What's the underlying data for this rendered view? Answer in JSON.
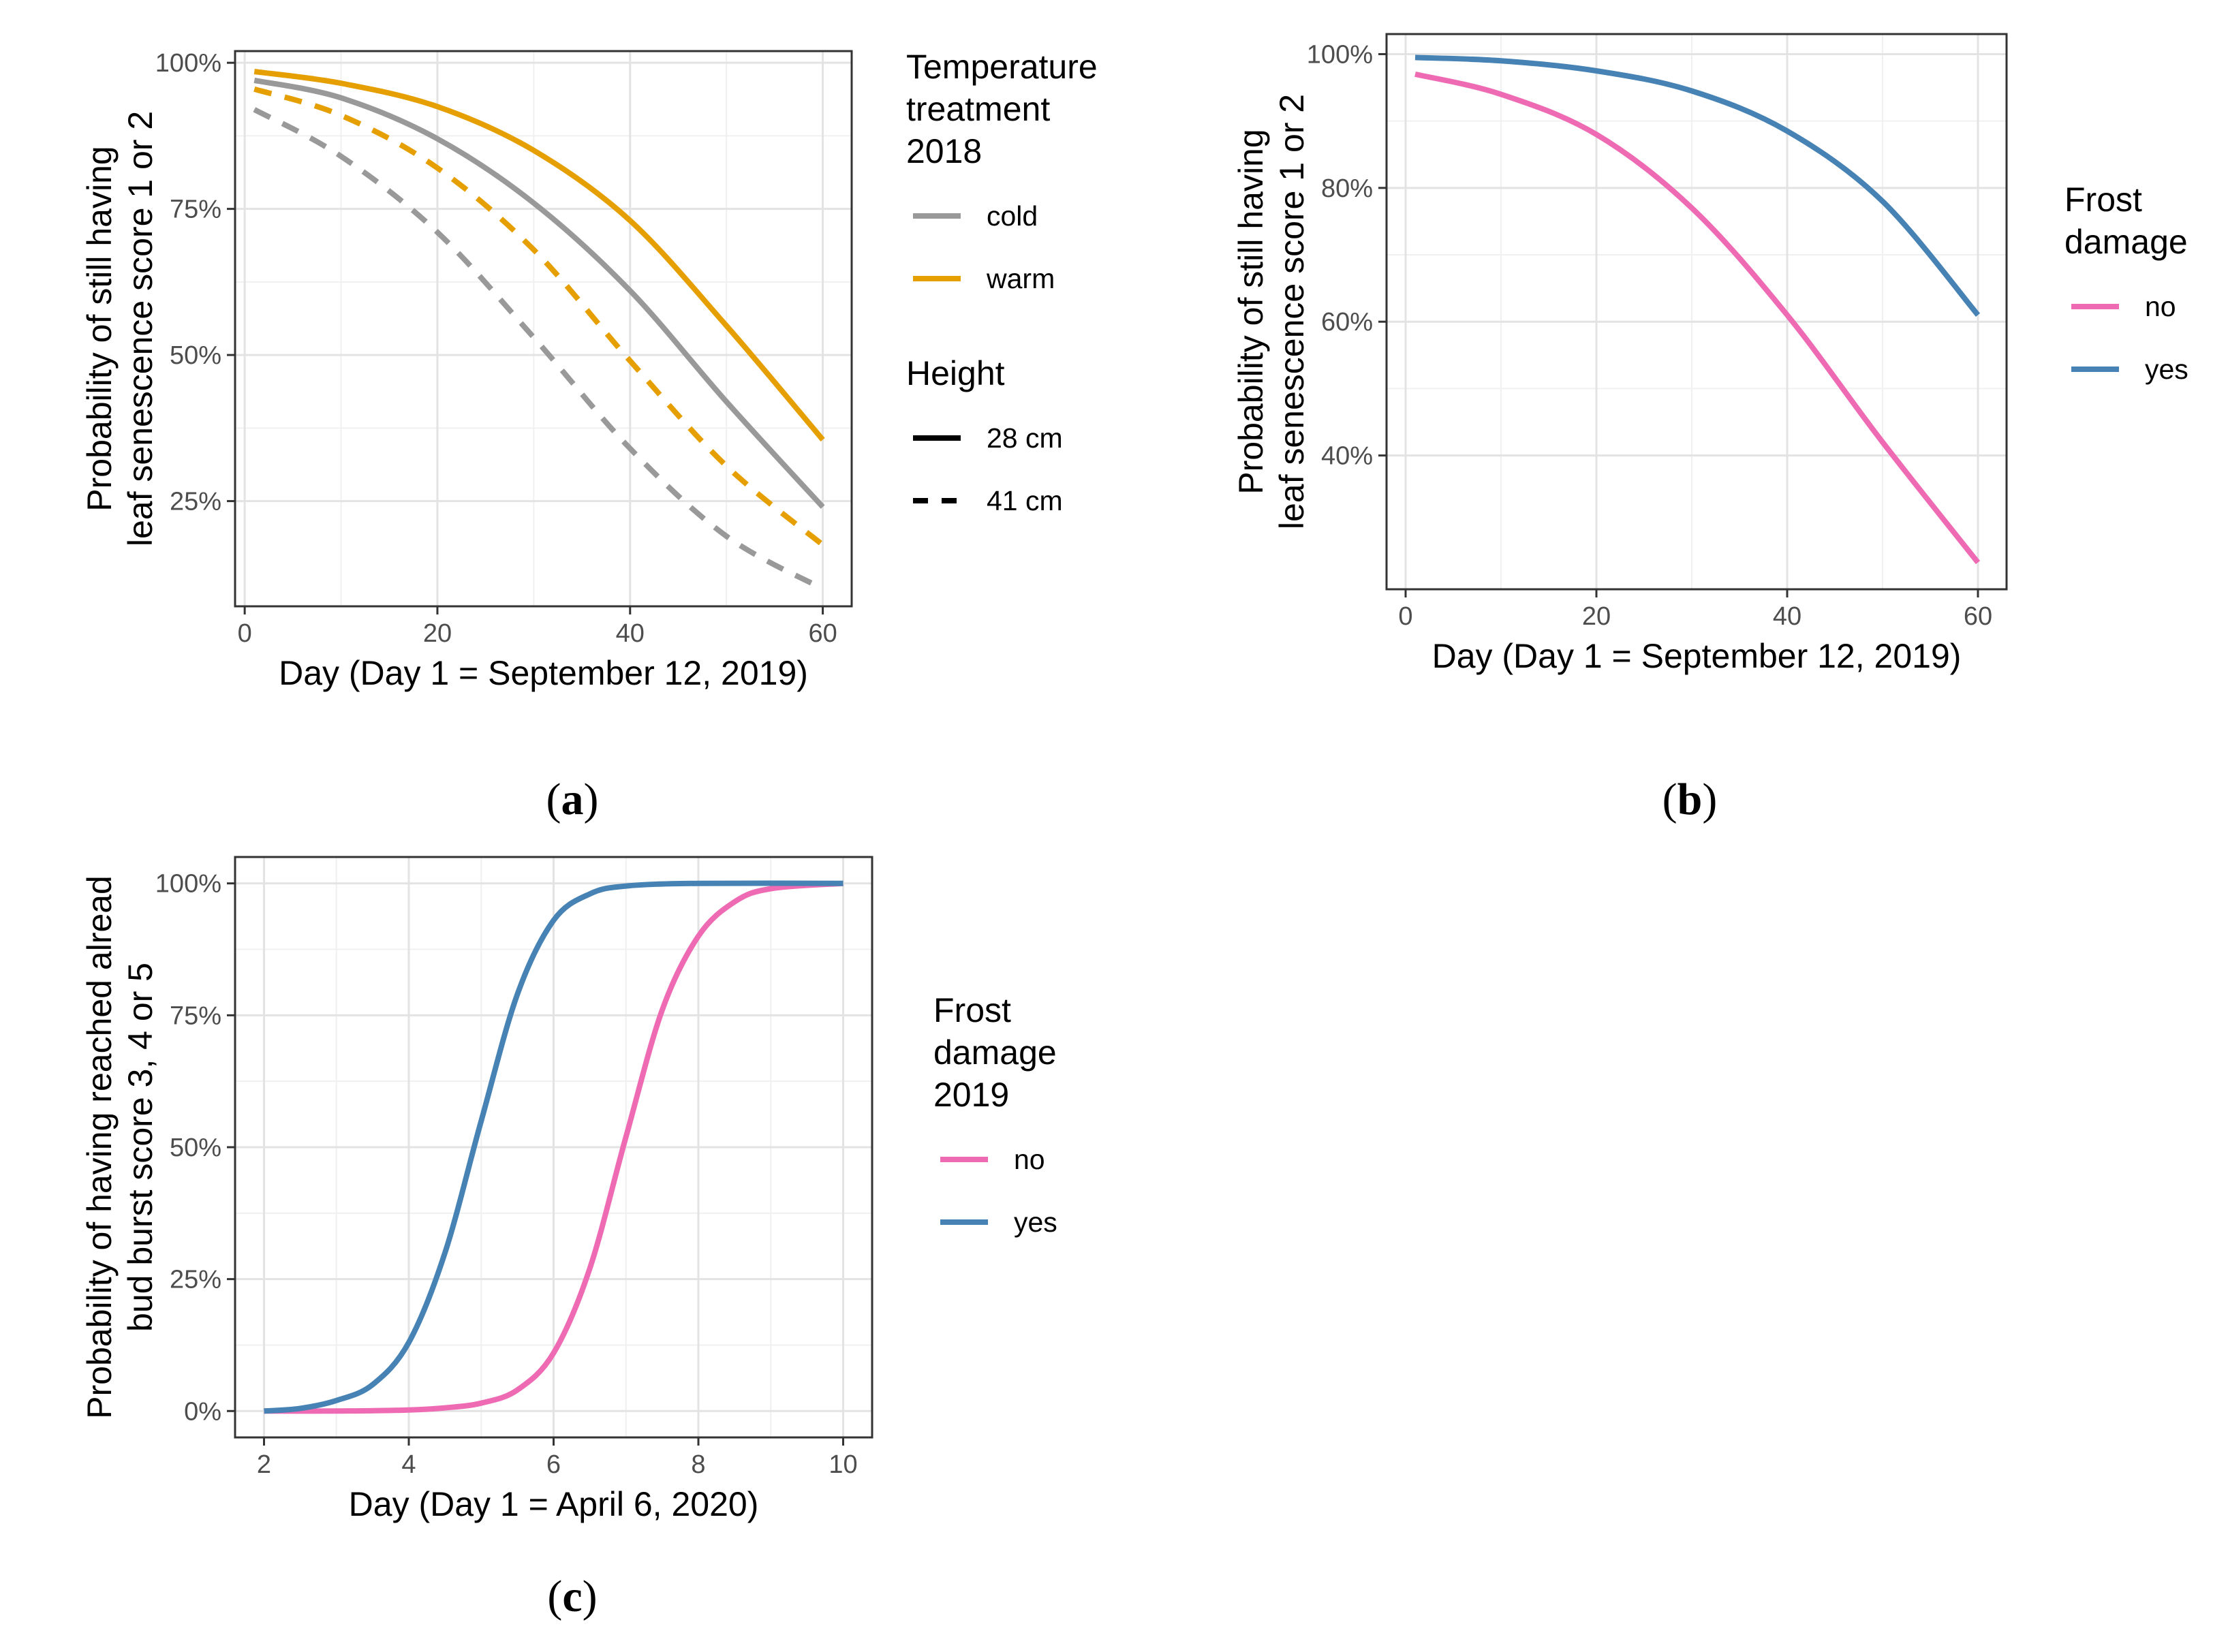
{
  "chart_data": [
    {
      "panel": "a",
      "type": "line",
      "caption": "(a)",
      "xlabel": "Day (Day 1 = September 12, 2019)",
      "ylabel": [
        "Probability of still having",
        "leaf senescence score 1 or 2"
      ],
      "xlim": [
        -1,
        63
      ],
      "ylim": [
        0.07,
        1.02
      ],
      "xticks": [
        0,
        20,
        40,
        60
      ],
      "yticks": [
        0.25,
        0.5,
        0.75,
        1.0
      ],
      "ytick_labels": [
        "25%",
        "50%",
        "75%",
        "100%"
      ],
      "grid": true,
      "legend_placement": "right",
      "legends": [
        {
          "title": [
            "Temperature",
            "treatment",
            "2018"
          ],
          "entries": [
            {
              "label": "cold",
              "color": "#999999",
              "dash": "solid"
            },
            {
              "label": "warm",
              "color": "#E69F00",
              "dash": "solid"
            }
          ]
        },
        {
          "title": [
            "Height"
          ],
          "entries": [
            {
              "label": "28 cm",
              "color": "#000000",
              "dash": "solid"
            },
            {
              "label": "41 cm",
              "color": "#000000",
              "dash": "dashed"
            }
          ]
        }
      ],
      "series": [
        {
          "group": "cold / 28 cm",
          "color": "#999999",
          "dash": "solid",
          "x": [
            1,
            10,
            20,
            30,
            40,
            50,
            60
          ],
          "y": [
            0.97,
            0.94,
            0.87,
            0.76,
            0.61,
            0.42,
            0.24
          ]
        },
        {
          "group": "warm / 28 cm",
          "color": "#E69F00",
          "dash": "solid",
          "x": [
            1,
            10,
            20,
            30,
            40,
            50,
            60
          ],
          "y": [
            0.985,
            0.965,
            0.925,
            0.85,
            0.73,
            0.55,
            0.355
          ]
        },
        {
          "group": "cold / 41 cm",
          "color": "#999999",
          "dash": "dashed",
          "x": [
            1,
            10,
            20,
            30,
            40,
            50,
            60
          ],
          "y": [
            0.92,
            0.84,
            0.71,
            0.53,
            0.34,
            0.19,
            0.1
          ]
        },
        {
          "group": "warm / 41 cm",
          "color": "#E69F00",
          "dash": "dashed",
          "x": [
            1,
            10,
            20,
            30,
            40,
            50,
            60
          ],
          "y": [
            0.955,
            0.91,
            0.82,
            0.68,
            0.49,
            0.31,
            0.175
          ]
        }
      ]
    },
    {
      "panel": "b",
      "type": "line",
      "caption": "(b)",
      "xlabel": "Day (Day 1 = September 12, 2019)",
      "ylabel": [
        "Probability of still having",
        "leaf senescence score 1 or 2"
      ],
      "xlim": [
        -2,
        63
      ],
      "ylim": [
        0.2,
        1.03
      ],
      "xticks": [
        0,
        20,
        40,
        60
      ],
      "yticks": [
        0.4,
        0.6,
        0.8,
        1.0
      ],
      "ytick_labels": [
        "40%",
        "60%",
        "80%",
        "100%"
      ],
      "grid": true,
      "legend_placement": "right",
      "legends": [
        {
          "title": [
            "Frost",
            "damage"
          ],
          "entries": [
            {
              "label": "no",
              "color": "#EE6BB4",
              "dash": "solid"
            },
            {
              "label": "yes",
              "color": "#4682B4",
              "dash": "solid"
            }
          ]
        }
      ],
      "series": [
        {
          "name": "no",
          "color": "#EE6BB4",
          "dash": "solid",
          "x": [
            1,
            10,
            20,
            30,
            40,
            50,
            60
          ],
          "y": [
            0.97,
            0.94,
            0.88,
            0.77,
            0.61,
            0.42,
            0.24
          ]
        },
        {
          "name": "yes",
          "color": "#4682B4",
          "dash": "solid",
          "x": [
            1,
            10,
            20,
            30,
            40,
            50,
            60
          ],
          "y": [
            0.995,
            0.99,
            0.975,
            0.945,
            0.885,
            0.78,
            0.61
          ]
        }
      ]
    },
    {
      "panel": "c",
      "type": "line",
      "caption": "(c)",
      "xlabel": "Day (Day 1 = April 6, 2020)",
      "ylabel": [
        "Probability of having reached alread",
        "bud burst score 3, 4 or 5"
      ],
      "xlim": [
        1.6,
        10.4
      ],
      "ylim": [
        -0.05,
        1.05
      ],
      "xticks": [
        2,
        4,
        6,
        8,
        10
      ],
      "yticks": [
        0,
        0.25,
        0.5,
        0.75,
        1.0
      ],
      "ytick_labels": [
        "0%",
        "25%",
        "50%",
        "75%",
        "100%"
      ],
      "grid": true,
      "legend_placement": "right",
      "legends": [
        {
          "title": [
            "Frost",
            "damage",
            "2019"
          ],
          "entries": [
            {
              "label": "no",
              "color": "#EE6BB4",
              "dash": "solid"
            },
            {
              "label": "yes",
              "color": "#4682B4",
              "dash": "solid"
            }
          ]
        }
      ],
      "series": [
        {
          "name": "no",
          "color": "#EE6BB4",
          "dash": "solid",
          "x": [
            2,
            3,
            4,
            4.5,
            5,
            5.5,
            6,
            6.5,
            7,
            7.5,
            8,
            8.5,
            9,
            10
          ],
          "y": [
            0.0,
            0.0,
            0.002,
            0.006,
            0.015,
            0.04,
            0.11,
            0.27,
            0.52,
            0.76,
            0.9,
            0.965,
            0.99,
            1.0
          ]
        },
        {
          "name": "yes",
          "color": "#4682B4",
          "dash": "solid",
          "x": [
            2,
            2.5,
            3,
            3.5,
            4,
            4.5,
            5,
            5.5,
            6,
            6.5,
            7,
            8,
            10
          ],
          "y": [
            0.0,
            0.005,
            0.02,
            0.05,
            0.13,
            0.3,
            0.55,
            0.79,
            0.93,
            0.98,
            0.995,
            1.0,
            1.0
          ]
        }
      ]
    }
  ]
}
